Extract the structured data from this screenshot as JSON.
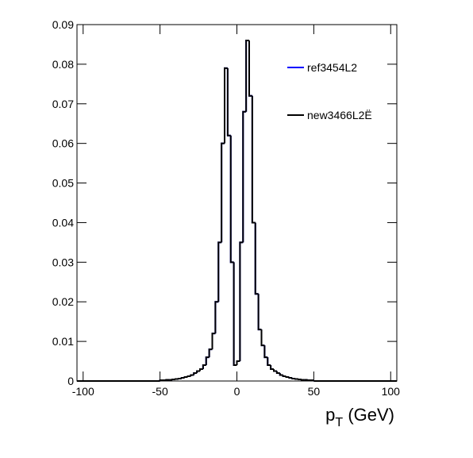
{
  "chart_data": {
    "type": "histogram",
    "x_label": {
      "base": "p",
      "sub": "T",
      "rest": " (GeV)"
    },
    "bins": [
      -50,
      -48,
      -46,
      -44,
      -42,
      -40,
      -38,
      -36,
      -34,
      -32,
      -30,
      -28,
      -26,
      -24,
      -22,
      -20,
      -18,
      -16,
      -14,
      -12,
      -10,
      -8,
      -6,
      -4,
      -2,
      0,
      2,
      4,
      6,
      8,
      10,
      12,
      14,
      16,
      18,
      20,
      22,
      24,
      26,
      28,
      30,
      32,
      34,
      36,
      38,
      40,
      42,
      44,
      46,
      48,
      50
    ],
    "series": [
      {
        "name": "ref3454L2",
        "color": "#0000ff",
        "values": [
          0.0002,
          0.0002,
          0.0003,
          0.0003,
          0.0004,
          0.0005,
          0.0006,
          0.0008,
          0.001,
          0.0012,
          0.0015,
          0.002,
          0.0025,
          0.003,
          0.004,
          0.006,
          0.008,
          0.012,
          0.02,
          0.035,
          0.06,
          0.079,
          0.062,
          0.03,
          0.004,
          0.005,
          0.035,
          0.068,
          0.086,
          0.072,
          0.04,
          0.022,
          0.013,
          0.009,
          0.006,
          0.004,
          0.003,
          0.0025,
          0.002,
          0.0015,
          0.0012,
          0.001,
          0.0008,
          0.0006,
          0.0005,
          0.0004,
          0.0003,
          0.0003,
          0.0002,
          0.0002
        ]
      },
      {
        "name": "new3466L2Ë",
        "color": "#000000",
        "values": [
          0.0002,
          0.0002,
          0.0003,
          0.0003,
          0.0004,
          0.0005,
          0.0006,
          0.0008,
          0.001,
          0.0012,
          0.0015,
          0.002,
          0.0025,
          0.003,
          0.004,
          0.006,
          0.008,
          0.012,
          0.02,
          0.035,
          0.06,
          0.079,
          0.062,
          0.03,
          0.004,
          0.005,
          0.035,
          0.068,
          0.086,
          0.072,
          0.04,
          0.022,
          0.013,
          0.009,
          0.006,
          0.004,
          0.003,
          0.0025,
          0.002,
          0.0015,
          0.0012,
          0.001,
          0.0008,
          0.0006,
          0.0005,
          0.0004,
          0.0003,
          0.0003,
          0.0002,
          0.0002
        ]
      }
    ],
    "xlim": [
      -104,
      104
    ],
    "xticks": [
      -100,
      -50,
      0,
      50,
      100
    ],
    "ylim": [
      0,
      0.09
    ],
    "yticks": [
      0,
      0.01,
      0.02,
      0.03,
      0.04,
      0.05,
      0.06,
      0.07,
      0.08,
      0.09
    ],
    "legend": "top-right"
  }
}
